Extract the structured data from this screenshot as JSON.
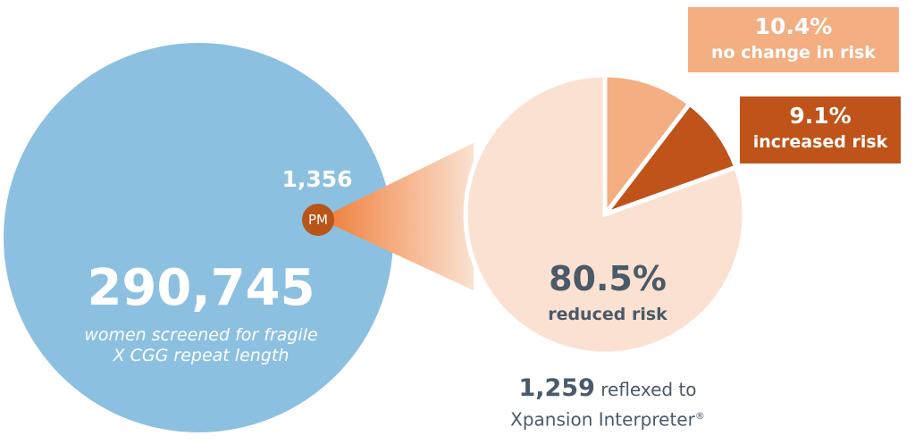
{
  "screened": {
    "count": "290,745",
    "description": "women screened for fragile X CGG repeat length"
  },
  "premutation": {
    "count": "1,356",
    "badge": "PM"
  },
  "reflexed": {
    "count": "1,259",
    "text": "reflexed to",
    "product": "Xpansion Interpreter",
    "mark": "®"
  },
  "chart_data": {
    "type": "pie",
    "slices": [
      {
        "label": "no change in risk",
        "value": 10.4,
        "display": "10.4%",
        "color": "#f3ae82"
      },
      {
        "label": "increased risk",
        "value": 9.1,
        "display": "9.1%",
        "color": "#bf5319"
      },
      {
        "label": "reduced risk",
        "value": 80.5,
        "display": "80.5%",
        "color": "#fbe1d1"
      }
    ]
  },
  "colors": {
    "circle": "#8cc0e0",
    "text_dark": "#4a5a68"
  }
}
